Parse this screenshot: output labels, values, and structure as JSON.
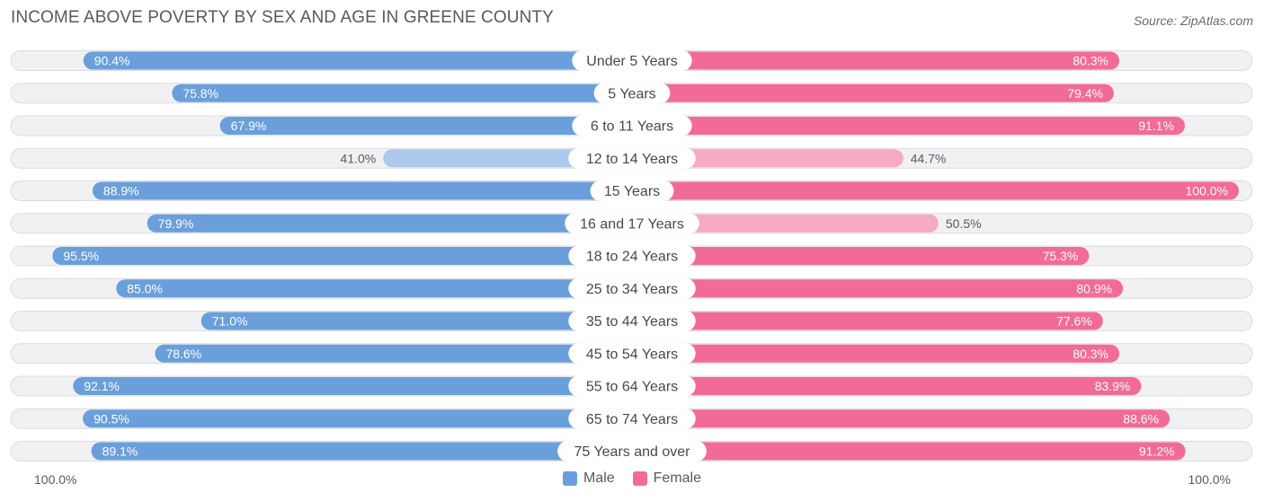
{
  "title": "INCOME ABOVE POVERTY BY SEX AND AGE IN GREENE COUNTY",
  "source": "Source: ZipAtlas.com",
  "colors": {
    "male_strong": "#6a9fdb",
    "male_light": "#adc9ec",
    "female_strong": "#f26b96",
    "female_light": "#f7aac3",
    "track": "#f1f1f3",
    "track_border": "#dcdce0"
  },
  "axis": {
    "left_label": "100.0%",
    "right_label": "100.0%"
  },
  "legend": {
    "male": "Male",
    "female": "Female"
  },
  "chart_data": {
    "type": "bar",
    "title": "INCOME ABOVE POVERTY BY SEX AND AGE IN GREENE COUNTY",
    "orientation": "horizontal-diverging",
    "xlim": [
      0,
      100
    ],
    "categories": [
      "Under 5 Years",
      "5 Years",
      "6 to 11 Years",
      "12 to 14 Years",
      "15 Years",
      "16 and 17 Years",
      "18 to 24 Years",
      "25 to 34 Years",
      "35 to 44 Years",
      "45 to 54 Years",
      "55 to 64 Years",
      "65 to 74 Years",
      "75 Years and over"
    ],
    "series": [
      {
        "name": "Male",
        "values": [
          90.4,
          75.8,
          67.9,
          41.0,
          88.9,
          79.9,
          95.5,
          85.0,
          71.0,
          78.6,
          92.1,
          90.5,
          89.1
        ],
        "labels": [
          "90.4%",
          "75.8%",
          "67.9%",
          "41.0%",
          "88.9%",
          "79.9%",
          "95.5%",
          "85.0%",
          "71.0%",
          "78.6%",
          "92.1%",
          "90.5%",
          "89.1%"
        ]
      },
      {
        "name": "Female",
        "values": [
          80.3,
          79.4,
          91.1,
          44.7,
          100.0,
          50.5,
          75.3,
          80.9,
          77.6,
          80.3,
          83.9,
          88.6,
          91.2
        ],
        "labels": [
          "80.3%",
          "79.4%",
          "91.1%",
          "44.7%",
          "100.0%",
          "50.5%",
          "75.3%",
          "80.9%",
          "77.6%",
          "80.3%",
          "83.9%",
          "88.6%",
          "91.2%"
        ]
      }
    ]
  }
}
